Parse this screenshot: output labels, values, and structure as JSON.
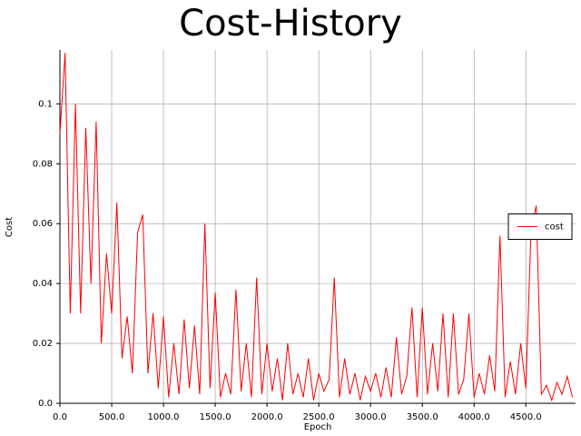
{
  "chart_data": {
    "type": "line",
    "title": "Cost-History",
    "xlabel": "Epoch",
    "ylabel": "Cost",
    "x": [
      0,
      50,
      100,
      150,
      200,
      250,
      300,
      350,
      400,
      450,
      500,
      550,
      600,
      650,
      700,
      750,
      800,
      850,
      900,
      950,
      1000,
      1050,
      1100,
      1150,
      1200,
      1250,
      1300,
      1350,
      1400,
      1450,
      1500,
      1550,
      1600,
      1650,
      1700,
      1750,
      1800,
      1850,
      1900,
      1950,
      2000,
      2050,
      2100,
      2150,
      2200,
      2250,
      2300,
      2350,
      2400,
      2450,
      2500,
      2550,
      2600,
      2650,
      2700,
      2750,
      2800,
      2850,
      2900,
      2950,
      3000,
      3050,
      3100,
      3150,
      3200,
      3250,
      3300,
      3350,
      3400,
      3450,
      3500,
      3550,
      3600,
      3650,
      3700,
      3750,
      3800,
      3850,
      3900,
      3950,
      4000,
      4050,
      4100,
      4150,
      4200,
      4250,
      4300,
      4350,
      4400,
      4450,
      4500,
      4550,
      4600,
      4650,
      4700,
      4750,
      4800,
      4850,
      4900,
      4950
    ],
    "series": [
      {
        "name": "cost",
        "color": "#ff0000",
        "values": [
          0.09,
          0.117,
          0.03,
          0.1,
          0.03,
          0.092,
          0.04,
          0.094,
          0.02,
          0.05,
          0.03,
          0.067,
          0.015,
          0.029,
          0.01,
          0.057,
          0.063,
          0.01,
          0.03,
          0.005,
          0.029,
          0.002,
          0.02,
          0.003,
          0.028,
          0.005,
          0.026,
          0.003,
          0.06,
          0.005,
          0.037,
          0.002,
          0.01,
          0.003,
          0.038,
          0.004,
          0.02,
          0.002,
          0.042,
          0.003,
          0.02,
          0.004,
          0.015,
          0.001,
          0.02,
          0.003,
          0.01,
          0.002,
          0.015,
          0.001,
          0.01,
          0.004,
          0.008,
          0.042,
          0.002,
          0.015,
          0.003,
          0.01,
          0.001,
          0.009,
          0.004,
          0.01,
          0.002,
          0.012,
          0.002,
          0.022,
          0.003,
          0.009,
          0.032,
          0.002,
          0.032,
          0.003,
          0.02,
          0.004,
          0.03,
          0.002,
          0.03,
          0.003,
          0.008,
          0.03,
          0.002,
          0.01,
          0.003,
          0.016,
          0.004,
          0.056,
          0.002,
          0.014,
          0.003,
          0.02,
          0.005,
          0.058,
          0.066,
          0.003,
          0.006,
          0.001,
          0.007,
          0.003,
          0.009,
          0.002
        ]
      }
    ],
    "xlim": [
      0,
      4980
    ],
    "ylim": [
      0,
      0.118
    ],
    "xticks": [
      {
        "value": 0,
        "label": "0.0"
      },
      {
        "value": 500,
        "label": "500.0"
      },
      {
        "value": 1000,
        "label": "1000.0"
      },
      {
        "value": 1500,
        "label": "1500.0"
      },
      {
        "value": 2000,
        "label": "2000.0"
      },
      {
        "value": 2500,
        "label": "2500.0"
      },
      {
        "value": 3000,
        "label": "3000.0"
      },
      {
        "value": 3500,
        "label": "3500.0"
      },
      {
        "value": 4000,
        "label": "4000.0"
      },
      {
        "value": 4500,
        "label": "4500.0"
      }
    ],
    "yticks": [
      {
        "value": 0,
        "label": "0.0"
      },
      0.02,
      0.04,
      0.06,
      0.08,
      0.1
    ],
    "grid": true,
    "legend": "right"
  }
}
